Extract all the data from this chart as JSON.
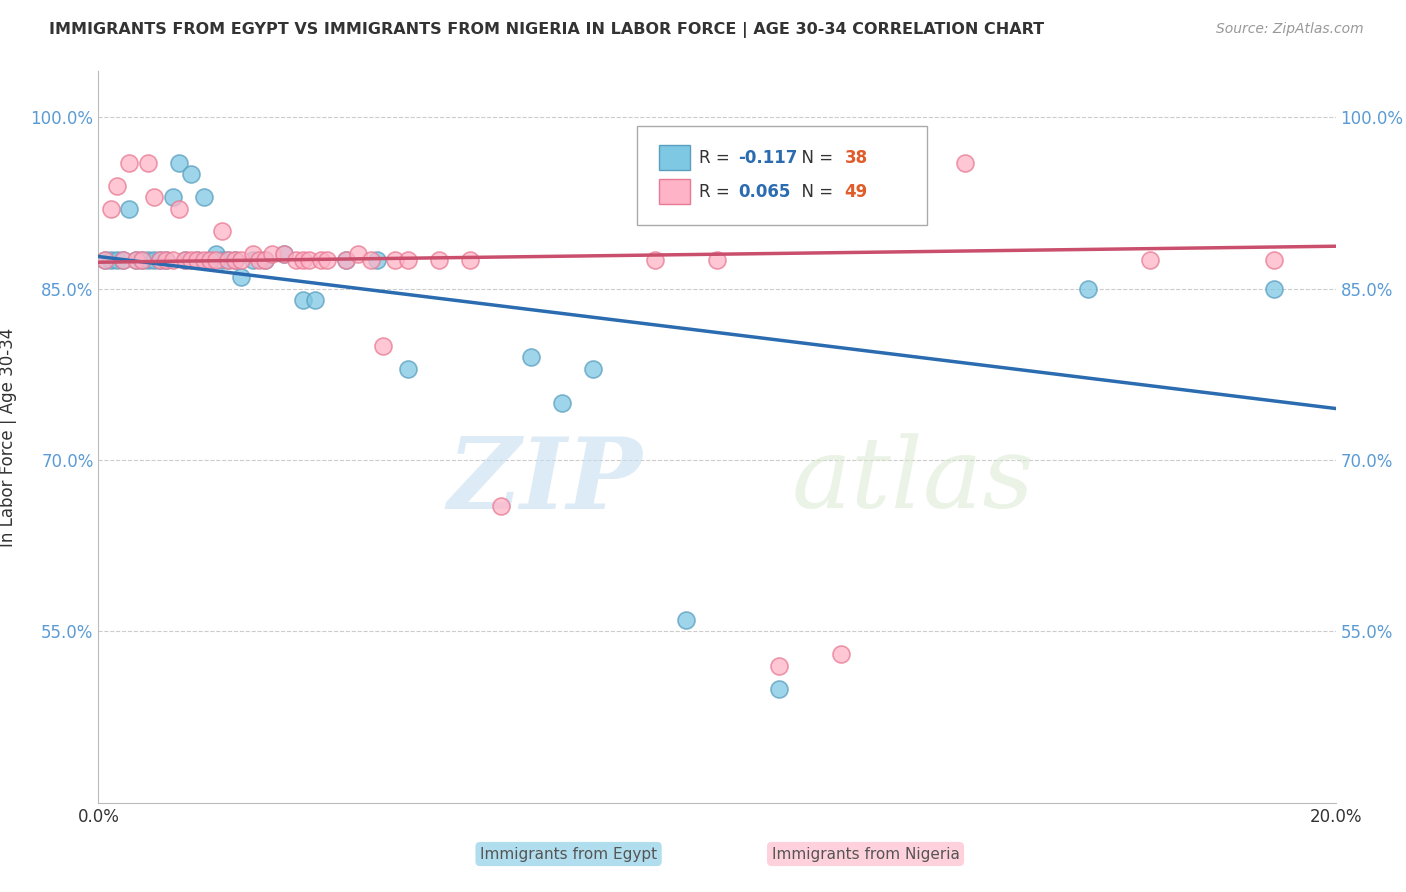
{
  "title": "IMMIGRANTS FROM EGYPT VS IMMIGRANTS FROM NIGERIA IN LABOR FORCE | AGE 30-34 CORRELATION CHART",
  "source": "Source: ZipAtlas.com",
  "ylabel": "In Labor Force | Age 30-34",
  "xlim": [
    0.0,
    0.2
  ],
  "ylim": [
    0.4,
    1.04
  ],
  "xticks": [
    0.0,
    0.04,
    0.08,
    0.12,
    0.16,
    0.2
  ],
  "xticklabels": [
    "0.0%",
    "",
    "",
    "",
    "",
    "20.0%"
  ],
  "yticks": [
    0.55,
    0.7,
    0.85,
    1.0
  ],
  "yticklabels": [
    "55.0%",
    "70.0%",
    "85.0%",
    "100.0%"
  ],
  "egypt_color": "#7ec8e3",
  "egypt_edge_color": "#5a9fc0",
  "nigeria_color": "#ffb3c6",
  "nigeria_edge_color": "#e87a94",
  "egypt_line_color": "#2b6cb0",
  "nigeria_line_color": "#c94f6d",
  "egypt_R": -0.117,
  "egypt_N": 38,
  "nigeria_R": 0.065,
  "nigeria_N": 49,
  "legend_R_color_egypt": "#2b6cb0",
  "legend_N_color_egypt": "#e05c2a",
  "legend_R_color_nigeria": "#2b6cb0",
  "legend_N_color_nigeria": "#e05c2a",
  "watermark_zip": "ZIP",
  "watermark_atlas": "atlas",
  "background_color": "#ffffff",
  "grid_color": "#cccccc",
  "egypt_scatter": [
    [
      0.001,
      0.875
    ],
    [
      0.002,
      0.875
    ],
    [
      0.003,
      0.875
    ],
    [
      0.004,
      0.875
    ],
    [
      0.005,
      0.92
    ],
    [
      0.006,
      0.875
    ],
    [
      0.007,
      0.875
    ],
    [
      0.008,
      0.875
    ],
    [
      0.009,
      0.875
    ],
    [
      0.01,
      0.875
    ],
    [
      0.011,
      0.875
    ],
    [
      0.012,
      0.93
    ],
    [
      0.013,
      0.96
    ],
    [
      0.014,
      0.875
    ],
    [
      0.015,
      0.95
    ],
    [
      0.016,
      0.875
    ],
    [
      0.017,
      0.93
    ],
    [
      0.018,
      0.875
    ],
    [
      0.019,
      0.88
    ],
    [
      0.02,
      0.875
    ],
    [
      0.021,
      0.875
    ],
    [
      0.022,
      0.875
    ],
    [
      0.023,
      0.86
    ],
    [
      0.025,
      0.875
    ],
    [
      0.027,
      0.875
    ],
    [
      0.03,
      0.88
    ],
    [
      0.033,
      0.84
    ],
    [
      0.035,
      0.84
    ],
    [
      0.04,
      0.875
    ],
    [
      0.045,
      0.875
    ],
    [
      0.05,
      0.78
    ],
    [
      0.07,
      0.79
    ],
    [
      0.075,
      0.75
    ],
    [
      0.08,
      0.78
    ],
    [
      0.095,
      0.56
    ],
    [
      0.11,
      0.5
    ],
    [
      0.16,
      0.85
    ],
    [
      0.19,
      0.85
    ]
  ],
  "nigeria_scatter": [
    [
      0.001,
      0.875
    ],
    [
      0.002,
      0.92
    ],
    [
      0.003,
      0.94
    ],
    [
      0.004,
      0.875
    ],
    [
      0.005,
      0.96
    ],
    [
      0.006,
      0.875
    ],
    [
      0.007,
      0.875
    ],
    [
      0.008,
      0.96
    ],
    [
      0.009,
      0.93
    ],
    [
      0.01,
      0.875
    ],
    [
      0.011,
      0.875
    ],
    [
      0.012,
      0.875
    ],
    [
      0.013,
      0.92
    ],
    [
      0.014,
      0.875
    ],
    [
      0.015,
      0.875
    ],
    [
      0.016,
      0.875
    ],
    [
      0.017,
      0.875
    ],
    [
      0.018,
      0.875
    ],
    [
      0.019,
      0.875
    ],
    [
      0.02,
      0.9
    ],
    [
      0.021,
      0.875
    ],
    [
      0.022,
      0.875
    ],
    [
      0.023,
      0.875
    ],
    [
      0.025,
      0.88
    ],
    [
      0.026,
      0.875
    ],
    [
      0.027,
      0.875
    ],
    [
      0.028,
      0.88
    ],
    [
      0.03,
      0.88
    ],
    [
      0.032,
      0.875
    ],
    [
      0.033,
      0.875
    ],
    [
      0.034,
      0.875
    ],
    [
      0.036,
      0.875
    ],
    [
      0.037,
      0.875
    ],
    [
      0.04,
      0.875
    ],
    [
      0.042,
      0.88
    ],
    [
      0.044,
      0.875
    ],
    [
      0.046,
      0.8
    ],
    [
      0.048,
      0.875
    ],
    [
      0.05,
      0.875
    ],
    [
      0.055,
      0.875
    ],
    [
      0.06,
      0.875
    ],
    [
      0.065,
      0.66
    ],
    [
      0.09,
      0.875
    ],
    [
      0.1,
      0.875
    ],
    [
      0.11,
      0.52
    ],
    [
      0.12,
      0.53
    ],
    [
      0.14,
      0.96
    ],
    [
      0.17,
      0.875
    ],
    [
      0.19,
      0.875
    ]
  ]
}
